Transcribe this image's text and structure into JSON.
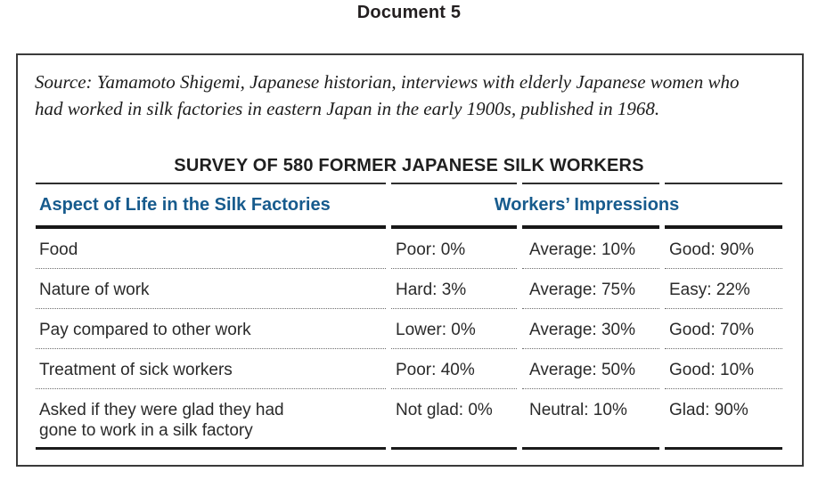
{
  "page": {
    "heading": "Document 5"
  },
  "document_box": {
    "source_line1": "Source: Yamamoto Shigemi, Japanese historian, interviews with elderly Japanese women who",
    "source_line2": "had worked in silk factories in eastern Japan in the early 1900s, published in 1968."
  },
  "table": {
    "title": "SURVEY OF 580 FORMER JAPANESE SILK WORKERS",
    "header": {
      "aspect": "Aspect of Life in the Silk Factories",
      "impressions": "Workers’ Impressions"
    },
    "rows": [
      {
        "aspect": "Food",
        "values": [
          "Poor: 0%",
          "Average: 10%",
          "Good: 90%"
        ]
      },
      {
        "aspect": "Nature of work",
        "values": [
          "Hard: 3%",
          "Average: 75%",
          "Easy: 22%"
        ]
      },
      {
        "aspect": "Pay compared to other work",
        "values": [
          "Lower: 0%",
          "Average: 30%",
          "Good: 70%"
        ]
      },
      {
        "aspect": "Treatment of sick workers",
        "values": [
          "Poor: 40%",
          "Average: 50%",
          "Good: 10%"
        ]
      },
      {
        "aspect": "Asked if they were glad they had",
        "aspect2": "gone to work in a silk factory",
        "values": [
          "Not glad: 0%",
          "Neutral: 10%",
          "Glad: 90%"
        ]
      }
    ]
  },
  "colors": {
    "header_blue": "#175b8d",
    "rule_black": "#171717",
    "body_text": "#2a2a2a"
  }
}
